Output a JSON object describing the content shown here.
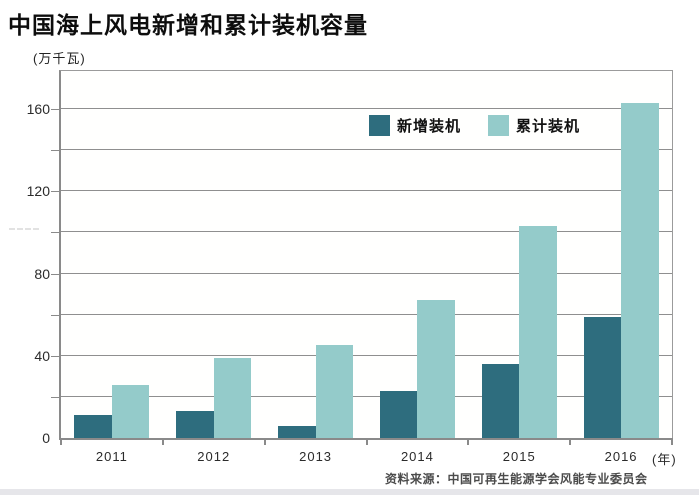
{
  "page": {
    "title": "中国海上风电新增和累计装机容量",
    "unit_label": "(万千瓦)",
    "x_axis_suffix": "(年)",
    "source_note": "资料来源：中国可再生能源学会风能专业委员会"
  },
  "legend": {
    "items": [
      {
        "label": "新增装机",
        "color": "#2e6d7e"
      },
      {
        "label": "累计装机",
        "color": "#94cbca"
      }
    ]
  },
  "chart_data": {
    "type": "bar",
    "title": "中国海上风电新增和累计装机容量",
    "categories": [
      "2011",
      "2012",
      "2013",
      "2014",
      "2015",
      "2016"
    ],
    "series": [
      {
        "name": "新增装机",
        "key": "new-installed",
        "color": "#2e6d7e",
        "values": [
          11,
          13,
          6,
          23,
          36,
          59
        ]
      },
      {
        "name": "累计装机",
        "key": "cumulative-installed",
        "color": "#94cbca",
        "values": [
          26,
          39,
          45,
          67,
          103,
          163
        ]
      }
    ],
    "ylabel": "万千瓦",
    "xlabel": "年",
    "ylim": [
      0,
      180
    ],
    "yticks": [
      0,
      40,
      80,
      120,
      160
    ],
    "grid_step": 20,
    "grid": true,
    "legend_position": "inside-top-right"
  },
  "colors": {
    "bar_new": "#2e6d7e",
    "bar_cumulative": "#94cbca",
    "gridline": "#8f8f8f",
    "axis": "#8a8a8a",
    "text": "#2b2b2b",
    "source_text": "#4b4b4b",
    "bottom_band": "#e6e6ea"
  }
}
